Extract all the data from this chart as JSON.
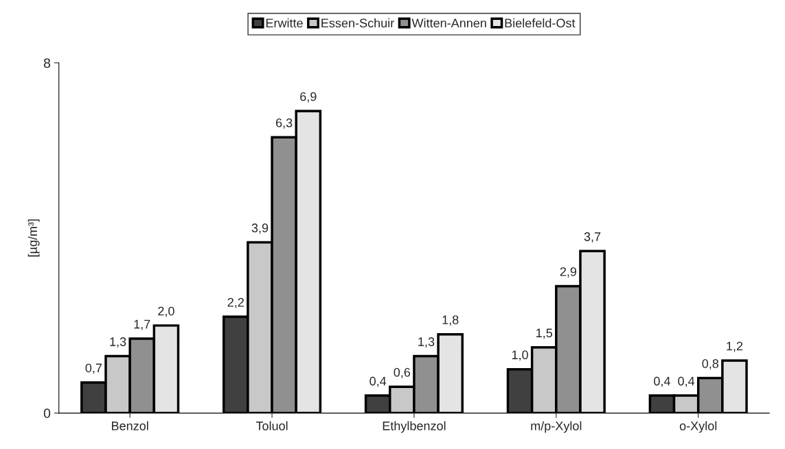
{
  "chart_data": {
    "type": "bar",
    "ylabel": "[µg/m³]",
    "categories": [
      "Benzol",
      "Toluol",
      "Ethylbenzol",
      "m/p-Xylol",
      "o-Xylol"
    ],
    "series": [
      {
        "name": "Erwitte",
        "color": "#404040",
        "values": [
          0.7,
          2.2,
          0.4,
          1.0,
          0.4
        ],
        "value_labels": [
          "0,7",
          "2,2",
          "0,4",
          "1,0",
          "0,4"
        ]
      },
      {
        "name": "Essen-Schuir",
        "color": "#c8c8c8",
        "values": [
          1.3,
          3.9,
          0.6,
          1.5,
          0.4
        ],
        "value_labels": [
          "1,3",
          "3,9",
          "0,6",
          "1,5",
          "0,4"
        ]
      },
      {
        "name": "Witten-Annen",
        "color": "#909090",
        "values": [
          1.7,
          6.3,
          1.3,
          2.9,
          0.8
        ],
        "value_labels": [
          "1,7",
          "6,3",
          "1,3",
          "2,9",
          "0,8"
        ]
      },
      {
        "name": "Bielefeld-Ost",
        "color": "#e4e4e4",
        "values": [
          2.0,
          6.9,
          1.8,
          3.7,
          1.2
        ],
        "value_labels": [
          "2,0",
          "6,9",
          "1,8",
          "3,7",
          "1,2"
        ]
      }
    ],
    "ylim": [
      0,
      8
    ],
    "yticks": [
      0,
      8
    ],
    "grid": false,
    "legend": "top"
  }
}
